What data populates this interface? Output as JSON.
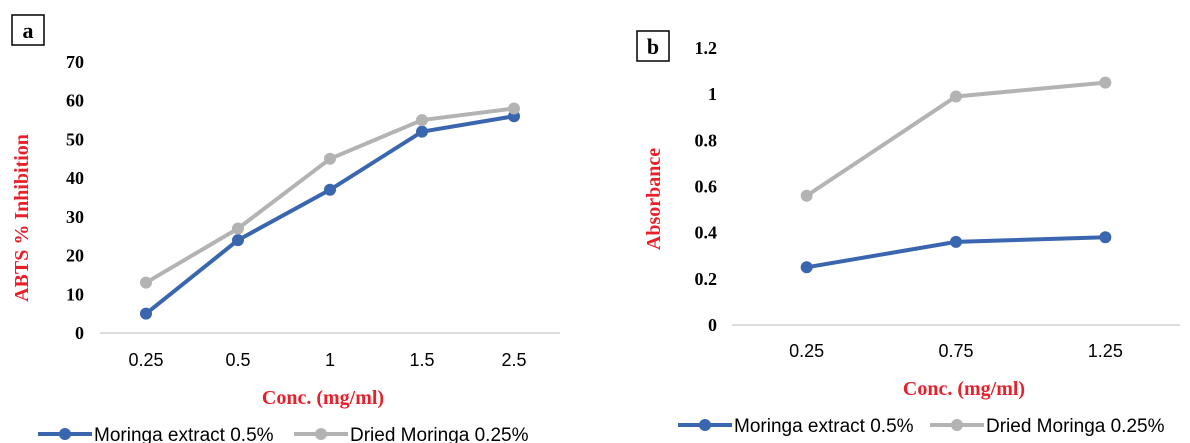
{
  "chart_data": [
    {
      "panel": "a",
      "type": "line",
      "categories": [
        "0.25",
        "0.5",
        "1",
        "1.5",
        "2.5"
      ],
      "yticks": [
        "0",
        "10",
        "20",
        "30",
        "40",
        "50",
        "60",
        "70"
      ],
      "ylim": [
        0,
        70
      ],
      "xlabel": "Conc. (mg/ml)",
      "ylabel": "ABTS % Inhibition",
      "grid": false,
      "legend_position": "bottom",
      "series": [
        {
          "name": "Moringa extract 0.5%",
          "color": "#3a66b0",
          "values": [
            5,
            24,
            37,
            52,
            56
          ]
        },
        {
          "name": "Dried Moringa 0.25%",
          "color": "#b3b3b3",
          "values": [
            13,
            27,
            45,
            55,
            58
          ]
        }
      ]
    },
    {
      "panel": "b",
      "type": "line",
      "categories": [
        "0.25",
        "0.75",
        "1.25"
      ],
      "yticks": [
        "0",
        "0.2",
        "0.4",
        "0.6",
        "0.8",
        "1",
        "1.2"
      ],
      "ylim": [
        0,
        1.2
      ],
      "xlabel": "Conc. (mg/ml)",
      "ylabel": "Absorbance",
      "grid": false,
      "legend_position": "bottom",
      "series": [
        {
          "name": "Moringa extract 0.5%",
          "color": "#3a66b0",
          "values": [
            0.25,
            0.36,
            0.38
          ]
        },
        {
          "name": "Dried Moringa 0.25%",
          "color": "#b3b3b3",
          "values": [
            0.56,
            0.99,
            1.05
          ]
        }
      ]
    }
  ]
}
